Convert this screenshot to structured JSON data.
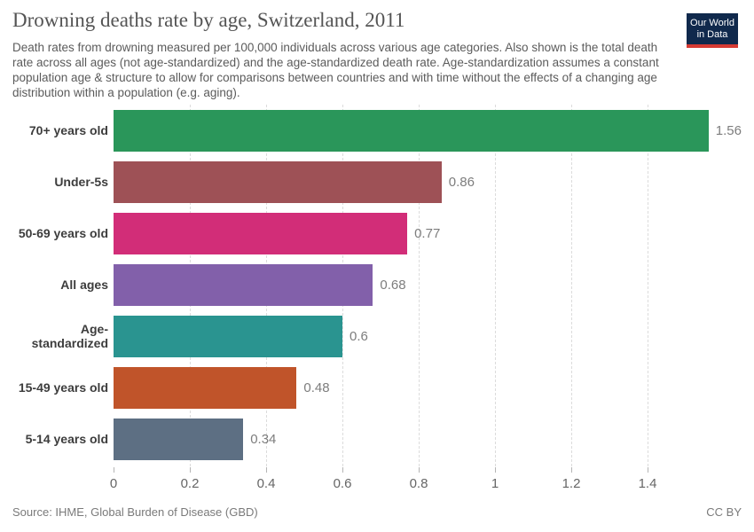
{
  "header": {
    "title": "Drowning deaths rate by age, Switzerland, 2011",
    "subtitle": "Death rates from drowning measured per 100,000 individuals across various age categories. Also shown is the total death rate across all ages (not age-standardized) and the age-standardized death rate. Age-standardization assumes a constant population age & structure to allow for comparisons between countries and with time without the effects of a changing age distribution within a population (e.g. aging).",
    "logo": {
      "line1": "Our World",
      "line2": "in Data",
      "background_color": "#10294c",
      "accent_color": "#d63a33"
    }
  },
  "chart_data": {
    "type": "bar",
    "orientation": "horizontal",
    "title": "Drowning deaths rate by age, Switzerland, 2011",
    "categories": [
      "70+ years old",
      "Under-5s",
      "50-69 years old",
      "All ages",
      "Age-standardized",
      "15-49 years old",
      "5-14 years old"
    ],
    "values": [
      1.56,
      0.86,
      0.77,
      0.68,
      0.6,
      0.48,
      0.34
    ],
    "value_labels": [
      "1.56",
      "0.86",
      "0.77",
      "0.68",
      "0.6",
      "0.48",
      "0.34"
    ],
    "bar_colors": [
      "#2a965a",
      "#9e5156",
      "#d22d78",
      "#8260aa",
      "#2a9490",
      "#c0542a",
      "#5d6f83"
    ],
    "x_ticks": [
      "0",
      "0.2",
      "0.4",
      "0.6",
      "0.8",
      "1",
      "1.2",
      "1.4"
    ],
    "x_tick_values": [
      0,
      0.2,
      0.4,
      0.6,
      0.8,
      1,
      1.2,
      1.4
    ],
    "xlim": [
      0,
      1.6
    ],
    "grid": "vertical-dashed",
    "legend": "none"
  },
  "footer": {
    "source": "Source: IHME, Global Burden of Disease (GBD)",
    "license": "CC BY"
  }
}
